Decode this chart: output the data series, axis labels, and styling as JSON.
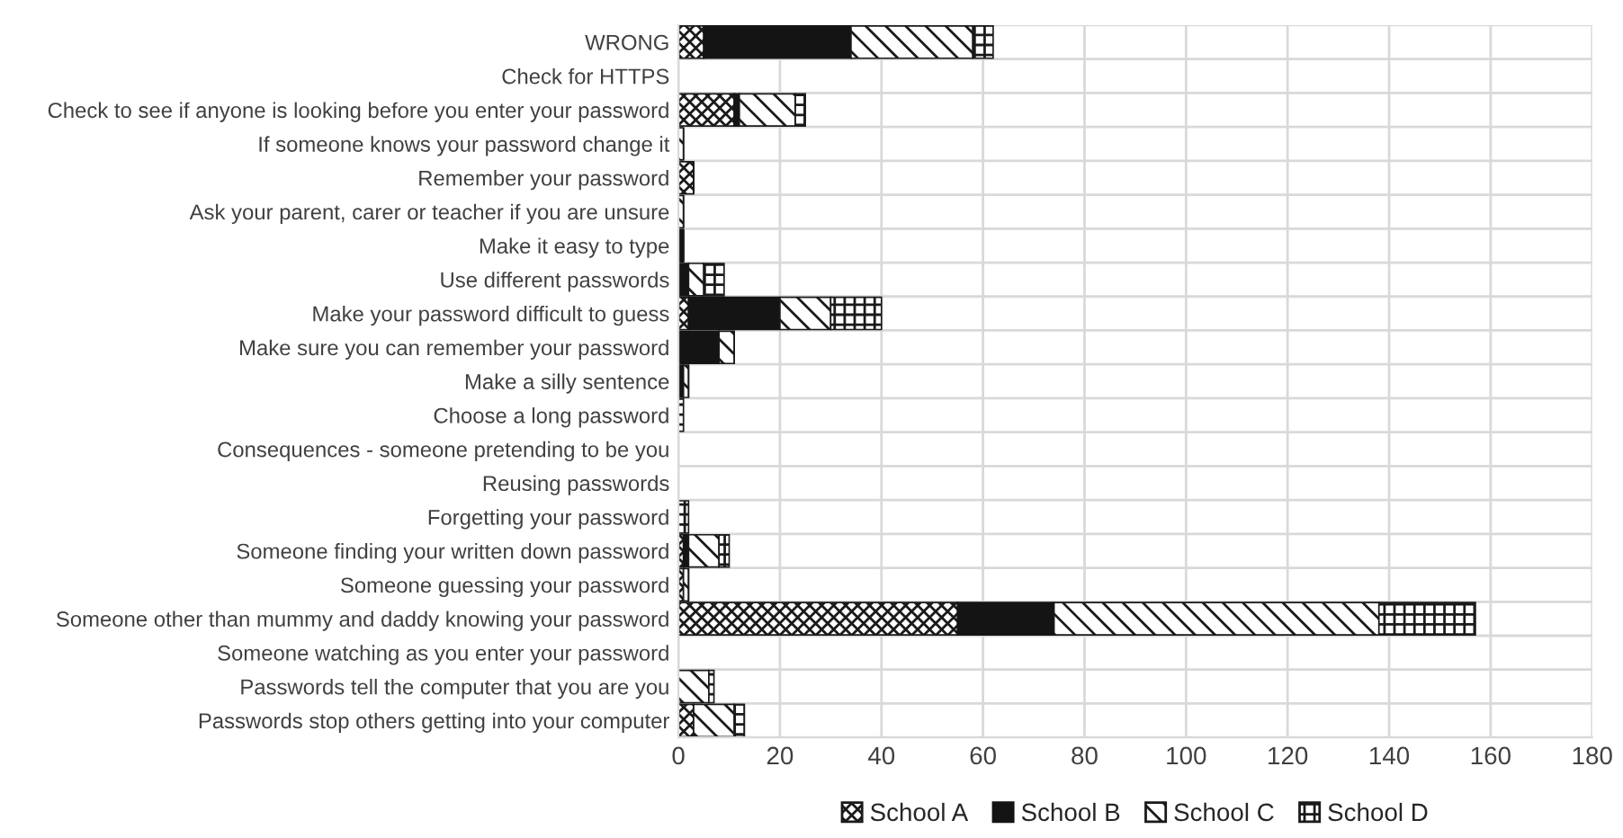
{
  "chart_data": {
    "type": "bar",
    "orientation": "horizontal",
    "stacked": true,
    "categories": [
      "WRONG",
      "Check for HTTPS",
      "Check to see if anyone is looking before you enter your password",
      "If someone knows your password change it",
      "Remember your password",
      "Ask your parent, carer or teacher if you are unsure",
      "Make it easy to type",
      "Use different passwords",
      "Make your password difficult to guess",
      "Make sure you can remember your password",
      "Make a silly sentence",
      "Choose a long password",
      "Consequences - someone pretending to be you",
      "Reusing passwords",
      "Forgetting your password",
      "Someone finding your written down password",
      "Someone guessing your password",
      "Someone other than mummy and daddy knowing your password",
      "Someone watching as you enter your password",
      "Passwords tell the computer that you are you",
      "Passwords stop others getting into your computer"
    ],
    "series": [
      {
        "name": "School A",
        "color": "#1a1a1a",
        "values": [
          5,
          0,
          11,
          0,
          3,
          0,
          0,
          0,
          2,
          0,
          0,
          0,
          0,
          0,
          0,
          1,
          1,
          55,
          0,
          0,
          3
        ]
      },
      {
        "name": "School B",
        "color": "#141414",
        "values": [
          29,
          0,
          1,
          0,
          0,
          0,
          1,
          2,
          18,
          8,
          1,
          0,
          0,
          0,
          0,
          1,
          0,
          19,
          0,
          0,
          0
        ]
      },
      {
        "name": "School C",
        "color": "#1a1a1a",
        "values": [
          24,
          0,
          11,
          1,
          0,
          1,
          0,
          3,
          10,
          3,
          1,
          0,
          0,
          0,
          0,
          6,
          1,
          64,
          0,
          6,
          8
        ]
      },
      {
        "name": "School D",
        "color": "#1a1a1a",
        "values": [
          4,
          0,
          2,
          0,
          0,
          0,
          0,
          4,
          10,
          0,
          0,
          1,
          0,
          0,
          2,
          2,
          0,
          19,
          0,
          1,
          2
        ]
      }
    ],
    "xlim": [
      0,
      180
    ],
    "xticks": [
      0,
      20,
      40,
      60,
      80,
      100,
      120,
      140,
      160,
      180
    ],
    "grid": true,
    "legend": "bottom"
  }
}
